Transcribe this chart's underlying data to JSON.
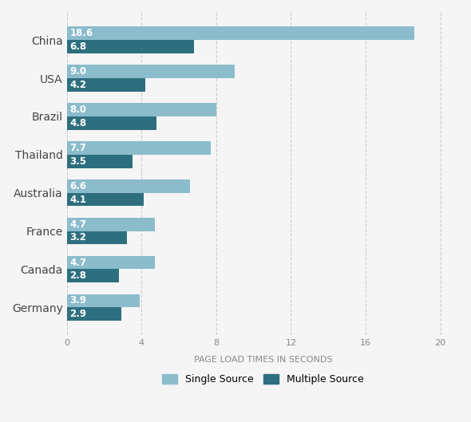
{
  "countries": [
    "China",
    "USA",
    "Brazil",
    "Thailand",
    "Australia",
    "France",
    "Canada",
    "Germany"
  ],
  "single_source": [
    18.6,
    9.0,
    8.0,
    7.7,
    6.6,
    4.7,
    4.7,
    3.9
  ],
  "multiple_source": [
    6.8,
    4.2,
    4.8,
    3.5,
    4.1,
    3.2,
    2.8,
    2.9
  ],
  "color_single": "#8bbccc",
  "color_multiple": "#2e6f7f",
  "background_color": "#f5f5f5",
  "xlabel": "PAGE LOAD TIMES IN SECONDS",
  "legend_single": "Single Source",
  "legend_multiple": "Multiple Source",
  "xlim": [
    0,
    21
  ],
  "xticks": [
    0,
    4,
    8,
    12,
    16,
    20
  ],
  "bar_height": 0.35,
  "label_fontsize": 8.5,
  "axis_label_fontsize": 8,
  "country_fontsize": 10,
  "text_color_bar": "#ffffff"
}
